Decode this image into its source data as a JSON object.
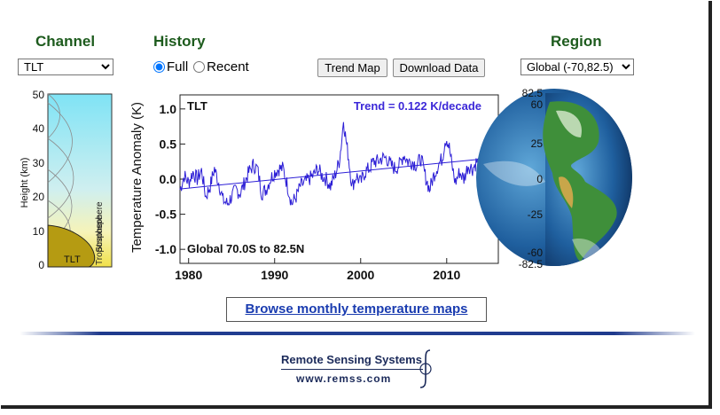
{
  "channel": {
    "heading": "Channel",
    "selected": "TLT",
    "height_axis_label": "Height  (km)",
    "height_ticks": [
      "50",
      "40",
      "30",
      "20",
      "10",
      "0"
    ],
    "stratosphere_label": "Stratosphere",
    "troposphere_label": "Troposphere",
    "tlt_label": "TLT"
  },
  "history": {
    "heading": "History",
    "option_full": "Full",
    "option_recent": "Recent",
    "selected": "Full"
  },
  "buttons": {
    "trend_map": "Trend Map",
    "download_data": "Download Data"
  },
  "region": {
    "heading": "Region",
    "selected": "Global (-70,82.5)",
    "lat_ticks": [
      "82.5",
      "60",
      "25",
      "0",
      "-25",
      "-60",
      "-82.5"
    ]
  },
  "browse_link": "Browse monthly temperature maps",
  "footer": {
    "org_name": "Remote Sensing Systems",
    "url": "www.remss.com"
  },
  "colors": {
    "heading": "#1d5b1d",
    "series": "#2d1fd6",
    "trend_text": "#3c28d8",
    "link": "#1a3cb0"
  },
  "chart_data": {
    "type": "line",
    "channel_label": "TLT",
    "trend_label": "Trend =  0.122 K/decade",
    "region_label": "Global  70.0S to  82.5N",
    "ylabel": "Temperature Anomaly (K)",
    "xlabel": "",
    "xlim": [
      1979,
      2016
    ],
    "ylim": [
      -1.2,
      1.2
    ],
    "x_ticks": [
      1980,
      1990,
      2000,
      2010
    ],
    "y_ticks": [
      "1.0",
      "0.5",
      "0.0",
      "-0.5",
      "-1.0"
    ],
    "y_tick_values": [
      1.0,
      0.5,
      0.0,
      -0.5,
      -1.0
    ],
    "grid": false,
    "trend_line": {
      "x": [
        1979,
        2016
      ],
      "y": [
        -0.14,
        0.31
      ]
    },
    "series": [
      {
        "x": [
          1979.0,
          1979.5,
          1980.0,
          1980.5,
          1981.0,
          1981.5,
          1982.0,
          1982.5,
          1983.0,
          1983.5,
          1984.0,
          1984.5,
          1985.0,
          1985.5,
          1986.0,
          1986.5,
          1987.0,
          1987.5,
          1988.0,
          1988.5,
          1989.0,
          1989.5,
          1990.0,
          1990.5,
          1991.0,
          1991.5,
          1992.0,
          1992.5,
          1993.0,
          1993.5,
          1994.0,
          1994.5,
          1995.0,
          1995.5,
          1996.0,
          1996.5,
          1997.0,
          1997.5,
          1997.8,
          1998.0,
          1998.3,
          1998.6,
          1999.0,
          1999.5,
          2000.0,
          2000.5,
          2001.0,
          2001.5,
          2002.0,
          2002.5,
          2003.0,
          2003.5,
          2004.0,
          2004.5,
          2005.0,
          2005.5,
          2006.0,
          2006.5,
          2007.0,
          2007.5,
          2008.0,
          2008.5,
          2009.0,
          2009.5,
          2009.8,
          2010.0,
          2010.3,
          2010.6,
          2011.0,
          2011.5,
          2012.0,
          2012.5,
          2013.0,
          2013.5,
          2014.0,
          2014.5,
          2015.0,
          2015.5,
          2016.0
        ],
        "y": [
          -0.15,
          0.05,
          -0.05,
          0.1,
          0.0,
          0.12,
          -0.25,
          -0.1,
          0.15,
          -0.05,
          -0.3,
          -0.35,
          -0.25,
          -0.15,
          -0.2,
          -0.05,
          0.1,
          0.2,
          0.15,
          -0.2,
          -0.15,
          0.0,
          0.1,
          0.15,
          0.15,
          -0.1,
          -0.35,
          -0.25,
          -0.1,
          -0.05,
          0.0,
          0.05,
          0.15,
          0.05,
          0.0,
          -0.1,
          0.05,
          0.25,
          0.55,
          0.85,
          0.55,
          0.3,
          -0.1,
          0.05,
          -0.05,
          0.1,
          0.15,
          0.25,
          0.25,
          0.3,
          0.3,
          0.2,
          0.15,
          0.2,
          0.35,
          0.25,
          0.25,
          0.2,
          0.3,
          0.05,
          -0.15,
          0.05,
          0.2,
          0.3,
          0.55,
          0.58,
          0.45,
          0.2,
          -0.05,
          0.1,
          0.0,
          0.2,
          0.15,
          0.25,
          0.2,
          0.25,
          0.3,
          0.25,
          0.45
        ]
      }
    ]
  }
}
